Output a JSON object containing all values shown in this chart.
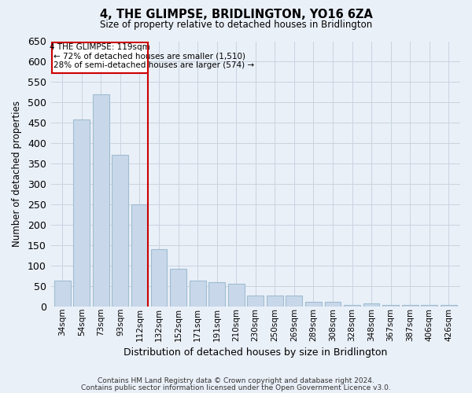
{
  "title": "4, THE GLIMPSE, BRIDLINGTON, YO16 6ZA",
  "subtitle": "Size of property relative to detached houses in Bridlington",
  "xlabel": "Distribution of detached houses by size in Bridlington",
  "ylabel": "Number of detached properties",
  "categories": [
    "34sqm",
    "54sqm",
    "73sqm",
    "93sqm",
    "112sqm",
    "132sqm",
    "152sqm",
    "171sqm",
    "191sqm",
    "210sqm",
    "230sqm",
    "250sqm",
    "269sqm",
    "289sqm",
    "308sqm",
    "328sqm",
    "348sqm",
    "367sqm",
    "387sqm",
    "406sqm",
    "426sqm"
  ],
  "values": [
    63,
    458,
    520,
    372,
    250,
    140,
    93,
    63,
    60,
    57,
    27,
    27,
    27,
    12,
    12,
    5,
    8,
    5,
    5,
    5,
    4
  ],
  "bar_color": "#c8d8ea",
  "bar_edge_color": "#a0bcd0",
  "grid_color": "#c8d4e0",
  "background_color": "#eaf0f8",
  "annotation_box_color": "#cc0000",
  "property_line_color": "#cc0000",
  "property_bin_index": 4,
  "annotation_title": "4 THE GLIMPSE: 119sqm",
  "annotation_line1": "← 72% of detached houses are smaller (1,510)",
  "annotation_line2": "28% of semi-detached houses are larger (574) →",
  "footer_line1": "Contains HM Land Registry data © Crown copyright and database right 2024.",
  "footer_line2": "Contains public sector information licensed under the Open Government Licence v3.0.",
  "ylim": [
    0,
    650
  ],
  "yticks": [
    0,
    50,
    100,
    150,
    200,
    250,
    300,
    350,
    400,
    450,
    500,
    550,
    600,
    650
  ],
  "figsize": [
    6.0,
    5.0
  ],
  "dpi": 100
}
